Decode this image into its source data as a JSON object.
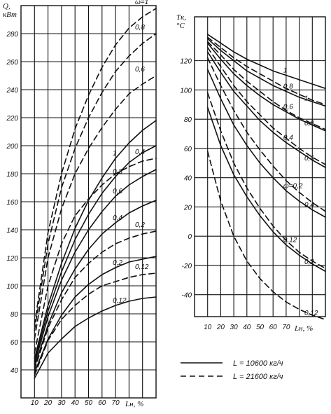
{
  "chart_data": [
    {
      "type": "line",
      "ylabel": "Q,",
      "yunit": "кВт",
      "xlabel": "L",
      "xlabel_sub": "н,",
      "xunit": "%",
      "xlim": [
        0,
        100
      ],
      "ylim": [
        20,
        300
      ],
      "xticks": [
        10,
        20,
        30,
        40,
        50,
        60,
        70
      ],
      "yticks": [
        40,
        60,
        80,
        100,
        120,
        140,
        160,
        180,
        200,
        220,
        240,
        260,
        280
      ],
      "grid": true,
      "series": [
        {
          "name": "0,12",
          "style": "solid",
          "x": [
            10,
            20,
            30,
            40,
            50,
            60,
            70,
            80,
            90,
            100
          ],
          "y": [
            34,
            52,
            62,
            71,
            77,
            82,
            86,
            89,
            91,
            92
          ]
        },
        {
          "name": "0,2",
          "style": "solid",
          "x": [
            10,
            20,
            30,
            40,
            50,
            60,
            70,
            80,
            90,
            100
          ],
          "y": [
            38,
            62,
            79,
            92,
            101,
            108,
            113,
            117,
            119,
            121
          ]
        },
        {
          "name": "0,4",
          "style": "solid",
          "x": [
            10,
            20,
            30,
            40,
            50,
            60,
            70,
            80,
            90,
            100
          ],
          "y": [
            42,
            72,
            95,
            112,
            126,
            137,
            145,
            152,
            157,
            161
          ]
        },
        {
          "name": "0,6",
          "style": "solid",
          "x": [
            10,
            20,
            30,
            40,
            50,
            60,
            70,
            80,
            90,
            100
          ],
          "y": [
            44,
            78,
            104,
            124,
            140,
            153,
            164,
            172,
            178,
            183
          ]
        },
        {
          "name": "0,8",
          "style": "solid",
          "x": [
            10,
            20,
            30,
            40,
            50,
            60,
            70,
            80,
            90,
            100
          ],
          "y": [
            46,
            82,
            110,
            133,
            151,
            166,
            178,
            188,
            195,
            200
          ]
        },
        {
          "name": "1",
          "style": "solid",
          "x": [
            10,
            20,
            30,
            40,
            50,
            60,
            70,
            80,
            90,
            100
          ],
          "y": [
            48,
            86,
            116,
            141,
            161,
            177,
            191,
            202,
            211,
            218
          ]
        },
        {
          "name": "0,12",
          "style": "dashed",
          "x": [
            10,
            20,
            30,
            40,
            50,
            60,
            70,
            80,
            90,
            100
          ],
          "y": [
            36,
            61,
            76,
            86,
            94,
            100,
            103,
            106,
            108,
            109
          ]
        },
        {
          "name": "0,2",
          "style": "dashed",
          "x": [
            10,
            20,
            30,
            40,
            50,
            60,
            70,
            80,
            90,
            100
          ],
          "y": [
            40,
            70,
            90,
            106,
            116,
            124,
            130,
            134,
            137,
            139
          ]
        },
        {
          "name": "0,4",
          "style": "dashed",
          "x": [
            10,
            20,
            30,
            40,
            50,
            60,
            70,
            80,
            90,
            100
          ],
          "y": [
            52,
            100,
            130,
            150,
            162,
            172,
            180,
            185,
            189,
            191
          ]
        },
        {
          "name": "0,6",
          "style": "dashed",
          "x": [
            10,
            20,
            30,
            40,
            50,
            60,
            70,
            80,
            90,
            100
          ],
          "y": [
            62,
            120,
            155,
            180,
            198,
            213,
            226,
            237,
            244,
            250
          ]
        },
        {
          "name": "0,8",
          "style": "dashed",
          "x": [
            10,
            20,
            30,
            40,
            50,
            60,
            70,
            80,
            90,
            100
          ],
          "y": [
            68,
            130,
            170,
            198,
            220,
            238,
            253,
            264,
            273,
            280
          ]
        },
        {
          "name": "ω=1",
          "style": "dashed",
          "x": [
            10,
            20,
            30,
            40,
            50,
            60,
            70,
            80,
            90,
            100
          ],
          "y": [
            72,
            138,
            180,
            212,
            236,
            256,
            272,
            284,
            292,
            298
          ]
        }
      ]
    },
    {
      "type": "line",
      "ylabel": "T",
      "ylabel_sub": "к,",
      "yunit": "°C",
      "xlabel": "L",
      "xlabel_sub": "н,",
      "xunit": "%",
      "xlim": [
        0,
        100
      ],
      "ylim": [
        -55,
        150
      ],
      "xticks": [
        10,
        20,
        30,
        40,
        50,
        60,
        70
      ],
      "yticks": [
        -40,
        -20,
        0,
        20,
        40,
        60,
        80,
        100,
        120
      ],
      "grid": true,
      "series": [
        {
          "name": "1",
          "style": "solid",
          "x": [
            10,
            20,
            30,
            40,
            50,
            60,
            70,
            80,
            90,
            100
          ],
          "y": [
            138,
            132,
            126,
            121,
            117,
            113,
            110,
            107,
            104,
            101
          ]
        },
        {
          "name": "0,8",
          "style": "solid",
          "x": [
            10,
            20,
            30,
            40,
            50,
            60,
            70,
            80,
            90,
            100
          ],
          "y": [
            135,
            127,
            120,
            113,
            108,
            103,
            99,
            95,
            92,
            89
          ]
        },
        {
          "name": "0,6",
          "style": "solid",
          "x": [
            10,
            20,
            30,
            40,
            50,
            60,
            70,
            80,
            90,
            100
          ],
          "y": [
            132,
            121,
            111,
            103,
            96,
            90,
            85,
            80,
            76,
            72
          ]
        },
        {
          "name": "0,4",
          "style": "solid",
          "x": [
            10,
            20,
            30,
            40,
            50,
            60,
            70,
            80,
            90,
            100
          ],
          "y": [
            126,
            112,
            99,
            89,
            79,
            71,
            64,
            58,
            52,
            47
          ]
        },
        {
          "name": "ω=0,2",
          "style": "solid",
          "x": [
            10,
            20,
            30,
            40,
            50,
            60,
            70,
            80,
            90,
            100
          ],
          "y": [
            114,
            94,
            76,
            62,
            50,
            40,
            31,
            24,
            18,
            13
          ]
        },
        {
          "name": "0,12",
          "style": "solid",
          "x": [
            10,
            20,
            30,
            40,
            50,
            60,
            70,
            80,
            90,
            100
          ],
          "y": [
            88,
            62,
            42,
            27,
            14,
            3,
            -6,
            -13,
            -19,
            -24
          ]
        },
        {
          "name": "1",
          "style": "dashed",
          "x": [
            10,
            20,
            30,
            40,
            50,
            60,
            70,
            80,
            90,
            100
          ],
          "y": [
            136,
            129,
            122,
            116,
            111,
            106,
            101,
            97,
            93,
            90
          ]
        },
        {
          "name": "0,8",
          "style": "dashed",
          "x": [
            10,
            20,
            30,
            40,
            50,
            60,
            70,
            80,
            90,
            100
          ],
          "y": [
            133,
            124,
            114,
            106,
            99,
            92,
            86,
            81,
            77,
            73
          ]
        },
        {
          "name": "0,6",
          "style": "dashed",
          "x": [
            10,
            20,
            30,
            40,
            50,
            60,
            70,
            80,
            90,
            100
          ],
          "y": [
            129,
            116,
            103,
            92,
            83,
            74,
            67,
            60,
            54,
            49
          ]
        },
        {
          "name": "0,4",
          "style": "dashed",
          "x": [
            10,
            20,
            30,
            40,
            50,
            60,
            70,
            80,
            90,
            100
          ],
          "y": [
            122,
            103,
            86,
            71,
            59,
            48,
            38,
            30,
            23,
            17
          ]
        },
        {
          "name": "0,2",
          "style": "dashed",
          "x": [
            10,
            20,
            30,
            40,
            50,
            60,
            70,
            80,
            90,
            100
          ],
          "y": [
            98,
            72,
            50,
            33,
            19,
            7,
            -3,
            -11,
            -17,
            -22
          ]
        },
        {
          "name": "0,12",
          "style": "dashed",
          "x": [
            10,
            20,
            30,
            40,
            50,
            60,
            70,
            80,
            90,
            100
          ],
          "y": [
            58,
            24,
            0,
            -17,
            -29,
            -38,
            -45,
            -50,
            -54,
            -57
          ]
        }
      ]
    }
  ],
  "legend": [
    {
      "style": "solid",
      "text": "L = 10600 кг/ч"
    },
    {
      "style": "dashed",
      "text": "L = 21600 кг/ч"
    }
  ]
}
